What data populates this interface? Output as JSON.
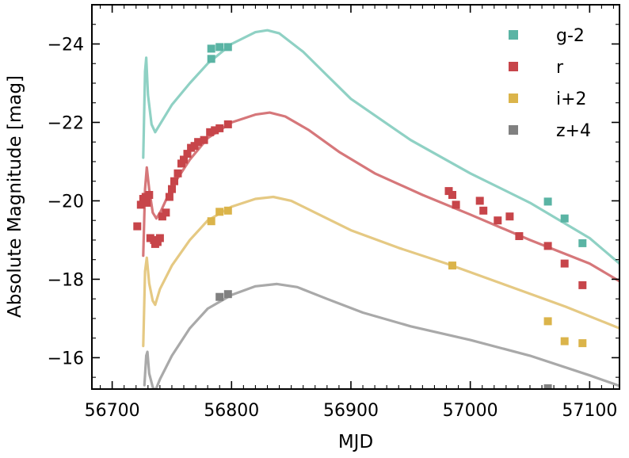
{
  "chart_data": {
    "type": "scatter",
    "xlabel": "MJD",
    "ylabel": "Absolute Magnitude [mag]",
    "xlim": [
      56683,
      57125
    ],
    "ylim": [
      -15.2,
      -25.0
    ],
    "x_ticks": [
      56700,
      56800,
      56900,
      57000,
      57100
    ],
    "x_tick_labels": [
      "56700",
      "56800",
      "56900",
      "57000",
      "57100"
    ],
    "y_ticks": [
      -24,
      -22,
      -20,
      -18,
      -16
    ],
    "y_tick_labels": [
      "−24",
      "−22",
      "−20",
      "−18",
      "−16"
    ],
    "legend_position": "top-right",
    "series": [
      {
        "name": "g-2",
        "color": "#5ab4a4",
        "line_color": "#8fd1c4",
        "points": [
          [
            56783,
            -23.62
          ],
          [
            56783,
            -23.88
          ],
          [
            56790,
            -23.92
          ],
          [
            56797,
            -23.92
          ],
          [
            57065,
            -19.98
          ],
          [
            57079,
            -19.55
          ],
          [
            57094,
            -18.92
          ]
        ],
        "model": [
          [
            56726,
            -21.1
          ],
          [
            56727.5,
            -23.3
          ],
          [
            56728.5,
            -23.65
          ],
          [
            56730,
            -22.7
          ],
          [
            56733,
            -21.95
          ],
          [
            56736,
            -21.75
          ],
          [
            56740,
            -21.95
          ],
          [
            56750,
            -22.45
          ],
          [
            56765,
            -23.0
          ],
          [
            56780,
            -23.5
          ],
          [
            56800,
            -24.0
          ],
          [
            56820,
            -24.3
          ],
          [
            56830,
            -24.35
          ],
          [
            56840,
            -24.27
          ],
          [
            56860,
            -23.8
          ],
          [
            56880,
            -23.2
          ],
          [
            56900,
            -22.6
          ],
          [
            56950,
            -21.55
          ],
          [
            57000,
            -20.7
          ],
          [
            57050,
            -19.95
          ],
          [
            57100,
            -19.05
          ],
          [
            57125,
            -18.4
          ]
        ]
      },
      {
        "name": "r",
        "color": "#c7454a",
        "line_color": "#d6777a",
        "points": [
          [
            56721,
            -19.35
          ],
          [
            56724,
            -19.9
          ],
          [
            56726,
            -20.05
          ],
          [
            56728,
            -20.1
          ],
          [
            56729,
            -19.95
          ],
          [
            56731,
            -20.15
          ],
          [
            56732,
            -19.05
          ],
          [
            56735,
            -19.0
          ],
          [
            56736,
            -18.9
          ],
          [
            56738,
            -18.95
          ],
          [
            56740,
            -19.05
          ],
          [
            56742,
            -19.6
          ],
          [
            56745,
            -19.7
          ],
          [
            56748,
            -20.1
          ],
          [
            56750,
            -20.3
          ],
          [
            56752,
            -20.5
          ],
          [
            56755,
            -20.7
          ],
          [
            56758,
            -20.95
          ],
          [
            56760,
            -21.05
          ],
          [
            56763,
            -21.2
          ],
          [
            56766,
            -21.35
          ],
          [
            56769,
            -21.4
          ],
          [
            56772,
            -21.5
          ],
          [
            56777,
            -21.55
          ],
          [
            56782,
            -21.75
          ],
          [
            56786,
            -21.8
          ],
          [
            56790,
            -21.85
          ],
          [
            56797,
            -21.95
          ],
          [
            56982,
            -20.25
          ],
          [
            56985,
            -20.15
          ],
          [
            56988,
            -19.9
          ],
          [
            57008,
            -20.0
          ],
          [
            57011,
            -19.75
          ],
          [
            57023,
            -19.5
          ],
          [
            57033,
            -19.6
          ],
          [
            57041,
            -19.1
          ],
          [
            57065,
            -18.85
          ],
          [
            57079,
            -18.4
          ],
          [
            57094,
            -17.85
          ]
        ],
        "model": [
          [
            56726,
            -18.6
          ],
          [
            56727.5,
            -20.3
          ],
          [
            56729,
            -20.85
          ],
          [
            56731,
            -20.3
          ],
          [
            56734,
            -19.7
          ],
          [
            56737,
            -19.55
          ],
          [
            56741,
            -19.75
          ],
          [
            56750,
            -20.35
          ],
          [
            56765,
            -21.05
          ],
          [
            56780,
            -21.6
          ],
          [
            56800,
            -22.0
          ],
          [
            56820,
            -22.2
          ],
          [
            56832,
            -22.25
          ],
          [
            56845,
            -22.15
          ],
          [
            56865,
            -21.8
          ],
          [
            56890,
            -21.25
          ],
          [
            56920,
            -20.7
          ],
          [
            56960,
            -20.15
          ],
          [
            57000,
            -19.65
          ],
          [
            57050,
            -19.0
          ],
          [
            57100,
            -18.4
          ],
          [
            57125,
            -17.95
          ]
        ]
      },
      {
        "name": "i+2",
        "color": "#dbb44a",
        "line_color": "#e5c983",
        "points": [
          [
            56783,
            -19.48
          ],
          [
            56790,
            -19.72
          ],
          [
            56797,
            -19.75
          ],
          [
            56985,
            -18.35
          ],
          [
            57065,
            -16.93
          ],
          [
            57079,
            -16.42
          ],
          [
            57094,
            -16.37
          ]
        ],
        "model": [
          [
            56726,
            -16.3
          ],
          [
            56727.5,
            -18.2
          ],
          [
            56729,
            -18.55
          ],
          [
            56731,
            -17.9
          ],
          [
            56734,
            -17.45
          ],
          [
            56736,
            -17.35
          ],
          [
            56740,
            -17.75
          ],
          [
            56750,
            -18.35
          ],
          [
            56765,
            -19.0
          ],
          [
            56780,
            -19.5
          ],
          [
            56800,
            -19.85
          ],
          [
            56820,
            -20.05
          ],
          [
            56835,
            -20.1
          ],
          [
            56850,
            -20.0
          ],
          [
            56870,
            -19.7
          ],
          [
            56900,
            -19.25
          ],
          [
            56940,
            -18.8
          ],
          [
            56980,
            -18.4
          ],
          [
            57030,
            -17.85
          ],
          [
            57080,
            -17.3
          ],
          [
            57125,
            -16.75
          ]
        ]
      },
      {
        "name": "z+4",
        "color": "#808080",
        "line_color": "#a9a9a9",
        "points": [
          [
            56790,
            -17.55
          ],
          [
            56797,
            -17.62
          ],
          [
            57065,
            -15.22
          ]
        ],
        "model": [
          [
            56727,
            -15.3
          ],
          [
            56728.5,
            -16.05
          ],
          [
            56729.5,
            -16.15
          ],
          [
            56731,
            -15.6
          ],
          [
            56734,
            -15.25
          ],
          [
            56736,
            -15.15
          ],
          [
            56740,
            -15.45
          ],
          [
            56750,
            -16.05
          ],
          [
            56765,
            -16.75
          ],
          [
            56780,
            -17.25
          ],
          [
            56800,
            -17.6
          ],
          [
            56820,
            -17.82
          ],
          [
            56838,
            -17.88
          ],
          [
            56855,
            -17.8
          ],
          [
            56880,
            -17.5
          ],
          [
            56910,
            -17.15
          ],
          [
            56950,
            -16.8
          ],
          [
            57000,
            -16.45
          ],
          [
            57050,
            -16.05
          ],
          [
            57100,
            -15.55
          ],
          [
            57125,
            -15.28
          ]
        ]
      }
    ]
  }
}
